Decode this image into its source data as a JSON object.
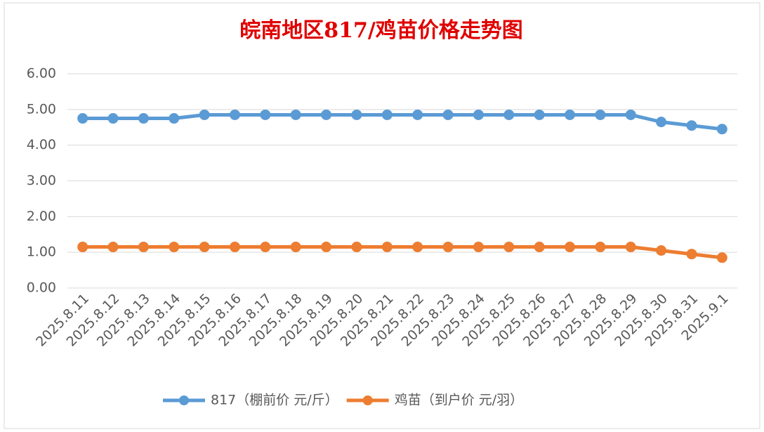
{
  "chart_data": {
    "type": "line",
    "title": "皖南地区817/鸡苗价格走势图",
    "categories": [
      "2025.8.11",
      "2025.8.12",
      "2025.8.13",
      "2025.8.14",
      "2025.8.15",
      "2025.8.16",
      "2025.8.17",
      "2025.8.18",
      "2025.8.19",
      "2025.8.20",
      "2025.8.21",
      "2025.8.22",
      "2025.8.23",
      "2025.8.24",
      "2025.8.25",
      "2025.8.26",
      "2025.8.27",
      "2025.8.28",
      "2025.8.29",
      "2025.8.30",
      "2025.8.31",
      "2025.9.1"
    ],
    "series": [
      {
        "name": "817（棚前价 元/斤）",
        "color": "#5b9bd5",
        "values": [
          4.75,
          4.75,
          4.75,
          4.75,
          4.85,
          4.85,
          4.85,
          4.85,
          4.85,
          4.85,
          4.85,
          4.85,
          4.85,
          4.85,
          4.85,
          4.85,
          4.85,
          4.85,
          4.85,
          4.65,
          4.55,
          4.45
        ]
      },
      {
        "name": "鸡苗（到户价 元/羽）",
        "color": "#ed7d31",
        "values": [
          1.15,
          1.15,
          1.15,
          1.15,
          1.15,
          1.15,
          1.15,
          1.15,
          1.15,
          1.15,
          1.15,
          1.15,
          1.15,
          1.15,
          1.15,
          1.15,
          1.15,
          1.15,
          1.15,
          1.05,
          0.95,
          0.85
        ]
      }
    ],
    "ylim": [
      0,
      6
    ],
    "yticks": [
      {
        "value": 0,
        "label": "0.00"
      },
      {
        "value": 1,
        "label": "1.00"
      },
      {
        "value": 2,
        "label": "2.00"
      },
      {
        "value": 3,
        "label": "3.00"
      },
      {
        "value": 4,
        "label": "4.00"
      },
      {
        "value": 5,
        "label": "5.00"
      },
      {
        "value": 6,
        "label": "6.00"
      }
    ],
    "grid": true,
    "legend": "bottom"
  }
}
